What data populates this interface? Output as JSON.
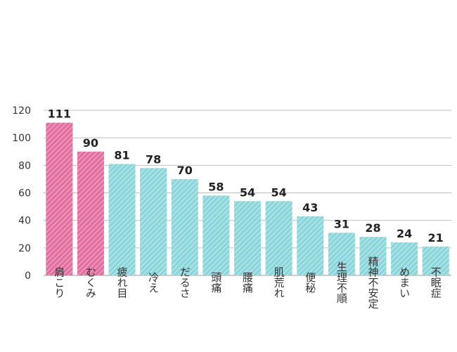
{
  "chart_data": {
    "type": "bar",
    "categories": [
      "肩こり",
      "むくみ",
      "疲れ目",
      "冷え",
      "だるさ",
      "頭痛",
      "腰痛",
      "肌荒れ",
      "便秘",
      "生理不順",
      "精神不安定",
      "めまい",
      "不眠症"
    ],
    "values": [
      111,
      90,
      81,
      78,
      70,
      58,
      54,
      54,
      43,
      31,
      28,
      24,
      21
    ],
    "highlight": [
      true,
      true,
      false,
      false,
      false,
      false,
      false,
      false,
      false,
      false,
      false,
      false,
      false
    ],
    "ylim": [
      0,
      120
    ],
    "yticks": [
      0,
      20,
      40,
      60,
      80,
      100,
      120
    ],
    "grid": true,
    "title": "",
    "xlabel": "",
    "ylabel": "",
    "colors": {
      "highlight": "#e46fa1",
      "highlight_stripe": "#f4b3cf",
      "normal": "#8ad6db",
      "normal_stripe": "#c9eef0",
      "grid": "#bfbfbf",
      "axis": "#999999"
    }
  }
}
